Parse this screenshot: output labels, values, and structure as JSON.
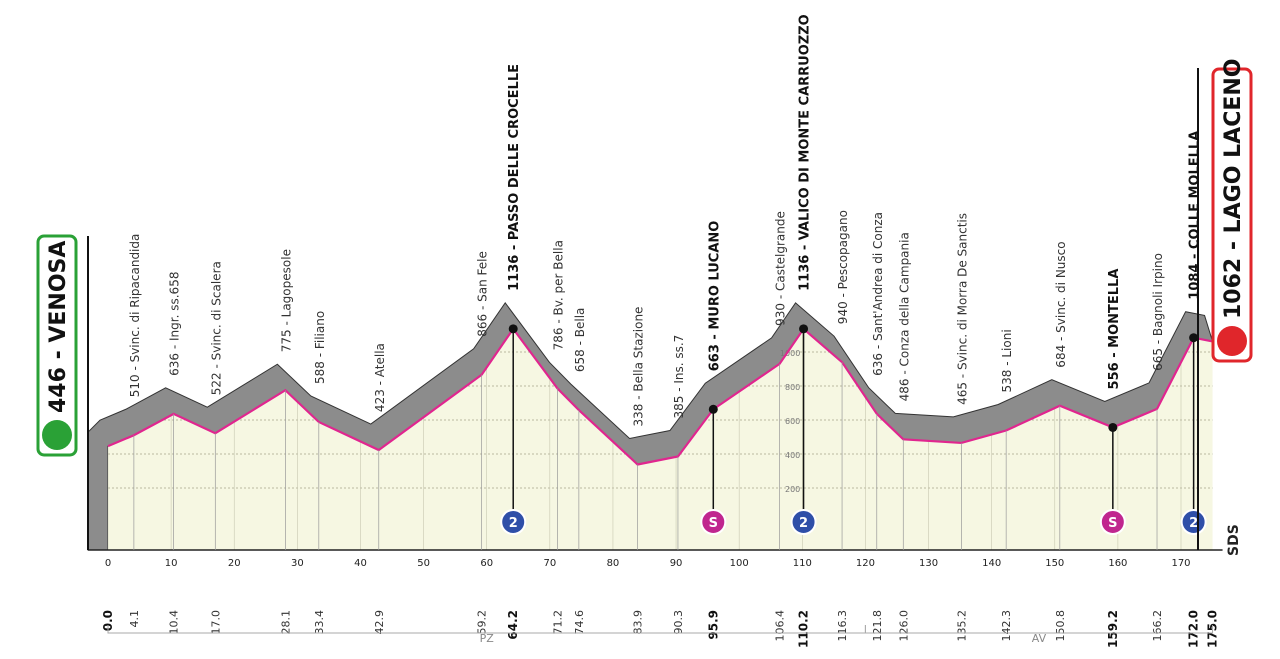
{
  "chart_data": {
    "type": "profile",
    "start": {
      "label": "446 - VENOSA",
      "elevation": 446,
      "color": "#2aa136"
    },
    "finish": {
      "label": "1062 - LAGO LACENO",
      "elevation": 1062,
      "color": "#e0262b"
    },
    "xlim": [
      0,
      175
    ],
    "xticks": [
      0,
      10,
      20,
      30,
      40,
      50,
      60,
      70,
      80,
      90,
      100,
      110,
      120,
      130,
      140,
      150,
      160,
      170
    ],
    "ylim": [
      -165,
      1900
    ],
    "yticks": [
      200,
      400,
      600,
      800,
      1000
    ],
    "waypoints": [
      {
        "km": {
          "value": 0,
          "label": "0.0"
        },
        "elevation": 446,
        "bold": true
      },
      {
        "km": 4.1,
        "elevation": 510,
        "label": "510 - Svinc. di Ripacandida"
      },
      {
        "km": 10.4,
        "elevation": 636,
        "label": "636 - Ingr. ss.658"
      },
      {
        "km": {
          "value": 17,
          "label": "17.0"
        },
        "elevation": 522,
        "label": "522 - Svinc. di Scalera"
      },
      {
        "km": 28.1,
        "elevation": 775,
        "label": "775 - Lagopesole"
      },
      {
        "km": 33.4,
        "elevation": 588,
        "label": "588 - Filiano"
      },
      {
        "km": 42.9,
        "elevation": 423,
        "label": "423 - Atella"
      },
      {
        "km": 59.2,
        "elevation": 866,
        "label": "866 - San Fele"
      },
      {
        "km": 64.2,
        "elevation": 1136,
        "label": "1136 - PASSO DELLE CROCELLE",
        "bold": true,
        "marker": "2",
        "marker_color": "#2f4fa8"
      },
      {
        "km": 71.2,
        "elevation": 786,
        "label": "786 - Bv. per Bella"
      },
      {
        "km": 74.6,
        "elevation": 658,
        "label": "658 - Bella"
      },
      {
        "km": 83.9,
        "elevation": 338,
        "label": "338 - Bella Stazione"
      },
      {
        "km": 90.3,
        "elevation": 385,
        "label": "385 - Ins. ss.7"
      },
      {
        "km": 95.9,
        "elevation": 663,
        "label": "663 - MURO LUCANO",
        "bold": true,
        "marker": "S",
        "marker_color": "#c0268f"
      },
      {
        "km": 106.4,
        "elevation": 930,
        "label": "930 - Castelgrande"
      },
      {
        "km": 110.2,
        "elevation": 1136,
        "label": "1136 - VALICO DI MONTE CARRUOZZO",
        "bold": true,
        "marker": "2",
        "marker_color": "#2f4fa8"
      },
      {
        "km": 116.3,
        "elevation": 940,
        "label": "940 - Pescopagano"
      },
      {
        "km": 121.8,
        "elevation": 636,
        "label": "636 - Sant'Andrea di Conza"
      },
      {
        "km": {
          "value": 126,
          "label": "126.0"
        },
        "elevation": 486,
        "label": "486 - Conza della Campania"
      },
      {
        "km": 135.2,
        "elevation": 465,
        "label": "465 - Svinc. di Morra De Sanctis"
      },
      {
        "km": 142.3,
        "elevation": 538,
        "label": "538 - Lioni"
      },
      {
        "km": 150.8,
        "elevation": 684,
        "label": "684 - Svinc. di Nusco"
      },
      {
        "km": 159.2,
        "elevation": 556,
        "label": "556 - MONTELLA",
        "bold": true,
        "marker": "S",
        "marker_color": "#c0268f"
      },
      {
        "km": 166.2,
        "elevation": 665,
        "label": "665 - Bagnoli Irpino"
      },
      {
        "km": {
          "value": 172,
          "label": "172.0"
        },
        "elevation": 1084,
        "label": "1084 - COLLE MOLELLA",
        "bold": true,
        "marker": "2",
        "marker_color": "#2f4fa8"
      },
      {
        "km": {
          "value": 175,
          "label": "175.0"
        },
        "elevation": 1062,
        "bold": true
      }
    ],
    "provinces": [
      {
        "label": "PZ",
        "from": 0,
        "to": 120
      },
      {
        "label": "AV",
        "from": 120,
        "to": 175
      }
    ],
    "logo": "SDS"
  }
}
